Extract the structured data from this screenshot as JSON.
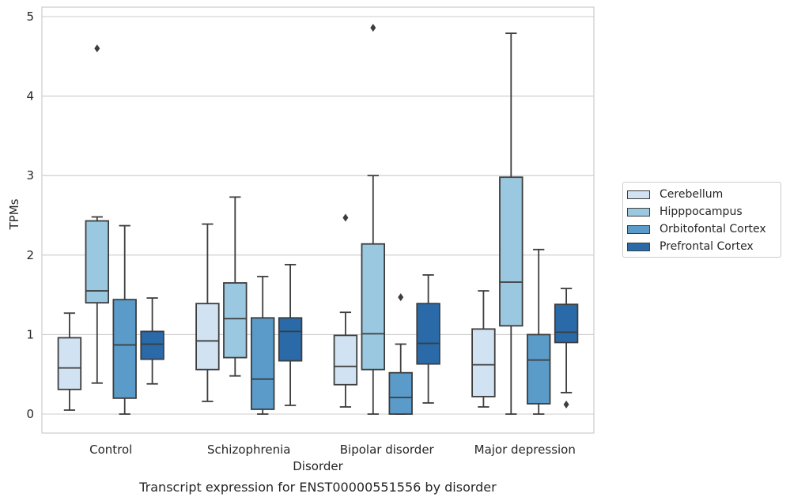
{
  "chart_data": {
    "type": "box",
    "caption": "Transcript expression for ENST00000551556 by disorder",
    "xlabel": "Disorder",
    "ylabel": "TPMs",
    "ylim": [
      -0.24,
      5.1
    ],
    "yticks": [
      0,
      1,
      2,
      3,
      4,
      5
    ],
    "categories": [
      "Control",
      "Schizophrenia",
      "Bipolar disorder",
      "Major depression"
    ],
    "grid": true,
    "legend_position": "right",
    "series": [
      {
        "name": "Cerebellum",
        "color": "#d1e2f2",
        "boxes": [
          {
            "whislo": 0.05,
            "q1": 0.31,
            "med": 0.58,
            "q3": 0.96,
            "whishi": 1.27,
            "fliers": []
          },
          {
            "whislo": 0.16,
            "q1": 0.56,
            "med": 0.92,
            "q3": 1.39,
            "whishi": 2.39,
            "fliers": []
          },
          {
            "whislo": 0.09,
            "q1": 0.37,
            "med": 0.6,
            "q3": 0.99,
            "whishi": 1.28,
            "fliers": [
              2.47
            ]
          },
          {
            "whislo": 0.09,
            "q1": 0.22,
            "med": 0.62,
            "q3": 1.07,
            "whishi": 1.55,
            "fliers": []
          }
        ]
      },
      {
        "name": "Hipppocampus",
        "color": "#9ac8e0",
        "boxes": [
          {
            "whislo": 0.39,
            "q1": 1.4,
            "med": 1.55,
            "q3": 2.43,
            "whishi": 2.48,
            "fliers": [
              4.6
            ]
          },
          {
            "whislo": 0.48,
            "q1": 0.71,
            "med": 1.2,
            "q3": 1.65,
            "whishi": 2.73,
            "fliers": []
          },
          {
            "whislo": 0.0,
            "q1": 0.56,
            "med": 1.01,
            "q3": 2.14,
            "whishi": 3.0,
            "fliers": [
              4.86
            ]
          },
          {
            "whislo": 0.0,
            "q1": 1.11,
            "med": 1.66,
            "q3": 2.98,
            "whishi": 4.79,
            "fliers": []
          }
        ]
      },
      {
        "name": "Orbitofontal Cortex",
        "color": "#5a9bc9",
        "boxes": [
          {
            "whislo": 0.0,
            "q1": 0.2,
            "med": 0.87,
            "q3": 1.44,
            "whishi": 2.37,
            "fliers": []
          },
          {
            "whislo": 0.0,
            "q1": 0.06,
            "med": 0.44,
            "q3": 1.21,
            "whishi": 1.73,
            "fliers": []
          },
          {
            "whislo": 0.0,
            "q1": 0.0,
            "med": 0.21,
            "q3": 0.52,
            "whishi": 0.88,
            "fliers": [
              1.47
            ]
          },
          {
            "whislo": 0.0,
            "q1": 0.13,
            "med": 0.68,
            "q3": 1.0,
            "whishi": 2.07,
            "fliers": []
          }
        ]
      },
      {
        "name": "Prefrontal Cortex",
        "color": "#2a6aa8",
        "boxes": [
          {
            "whislo": 0.38,
            "q1": 0.69,
            "med": 0.88,
            "q3": 1.04,
            "whishi": 1.46,
            "fliers": []
          },
          {
            "whislo": 0.11,
            "q1": 0.67,
            "med": 1.04,
            "q3": 1.21,
            "whishi": 1.88,
            "fliers": []
          },
          {
            "whislo": 0.14,
            "q1": 0.63,
            "med": 0.89,
            "q3": 1.39,
            "whishi": 1.75,
            "fliers": []
          },
          {
            "whislo": 0.27,
            "q1": 0.9,
            "med": 1.03,
            "q3": 1.38,
            "whishi": 1.58,
            "fliers": [
              0.12
            ]
          }
        ]
      }
    ]
  }
}
